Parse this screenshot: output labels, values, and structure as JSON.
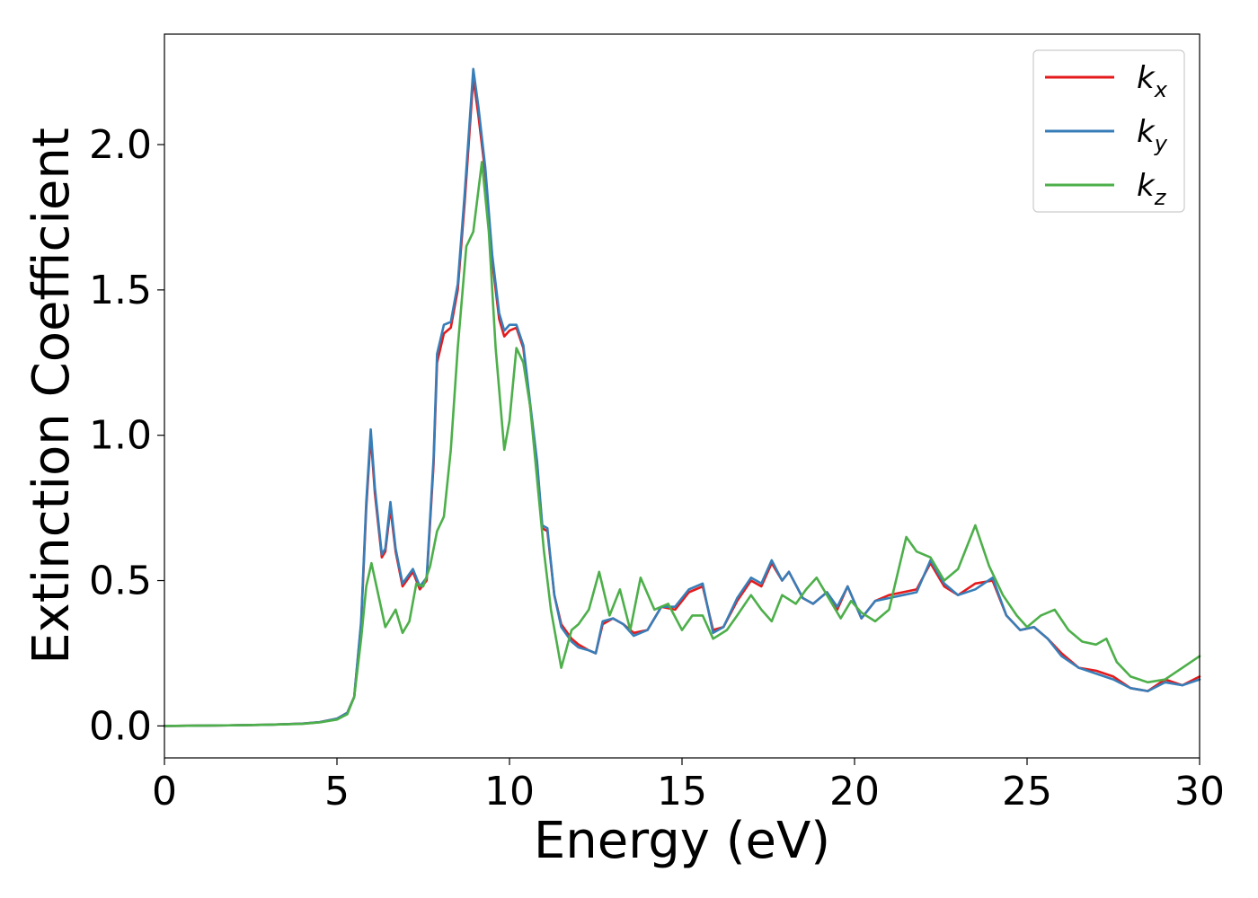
{
  "chart_data": {
    "type": "line",
    "title": "",
    "xlabel": "Energy (eV)",
    "ylabel": "Extinction Coefficient",
    "xlim": [
      0,
      30
    ],
    "ylim": [
      -0.11,
      2.38
    ],
    "xticks": [
      0,
      5,
      10,
      15,
      20,
      25,
      30
    ],
    "xtick_labels": [
      "0",
      "5",
      "10",
      "15",
      "20",
      "25",
      "30"
    ],
    "yticks": [
      0.0,
      0.5,
      1.0,
      1.5,
      2.0
    ],
    "ytick_labels": [
      "0.0",
      "0.5",
      "1.0",
      "1.5",
      "2.0"
    ],
    "grid": false,
    "legend_position": "top-right",
    "series": [
      {
        "name": "k_x",
        "legend_base": "k",
        "legend_sub": "x",
        "color": "#e41a1c",
        "points": [
          [
            0,
            0.0
          ],
          [
            1,
            0.001
          ],
          [
            2,
            0.002
          ],
          [
            3,
            0.004
          ],
          [
            4,
            0.008
          ],
          [
            4.5,
            0.013
          ],
          [
            5,
            0.025
          ],
          [
            5.3,
            0.045
          ],
          [
            5.5,
            0.1
          ],
          [
            5.7,
            0.35
          ],
          [
            5.85,
            0.75
          ],
          [
            5.98,
            1.0
          ],
          [
            6.1,
            0.8
          ],
          [
            6.3,
            0.58
          ],
          [
            6.4,
            0.6
          ],
          [
            6.55,
            0.75
          ],
          [
            6.7,
            0.6
          ],
          [
            6.9,
            0.48
          ],
          [
            7.2,
            0.53
          ],
          [
            7.4,
            0.47
          ],
          [
            7.6,
            0.5
          ],
          [
            7.8,
            0.9
          ],
          [
            7.9,
            1.25
          ],
          [
            8.1,
            1.35
          ],
          [
            8.3,
            1.37
          ],
          [
            8.5,
            1.5
          ],
          [
            8.7,
            1.8
          ],
          [
            8.95,
            2.23
          ],
          [
            9.1,
            2.1
          ],
          [
            9.3,
            1.9
          ],
          [
            9.5,
            1.6
          ],
          [
            9.7,
            1.4
          ],
          [
            9.85,
            1.34
          ],
          [
            10.0,
            1.36
          ],
          [
            10.2,
            1.37
          ],
          [
            10.4,
            1.3
          ],
          [
            10.6,
            1.1
          ],
          [
            10.8,
            0.9
          ],
          [
            10.95,
            0.68
          ],
          [
            11.1,
            0.67
          ],
          [
            11.3,
            0.45
          ],
          [
            11.5,
            0.35
          ],
          [
            11.8,
            0.3
          ],
          [
            12.0,
            0.28
          ],
          [
            12.3,
            0.26
          ],
          [
            12.5,
            0.25
          ],
          [
            12.7,
            0.35
          ],
          [
            13.0,
            0.37
          ],
          [
            13.3,
            0.35
          ],
          [
            13.6,
            0.32
          ],
          [
            14.0,
            0.33
          ],
          [
            14.4,
            0.41
          ],
          [
            14.8,
            0.4
          ],
          [
            15.2,
            0.46
          ],
          [
            15.6,
            0.48
          ],
          [
            15.9,
            0.33
          ],
          [
            16.2,
            0.34
          ],
          [
            16.6,
            0.43
          ],
          [
            17.0,
            0.5
          ],
          [
            17.3,
            0.48
          ],
          [
            17.6,
            0.56
          ],
          [
            17.9,
            0.5
          ],
          [
            18.1,
            0.53
          ],
          [
            18.5,
            0.44
          ],
          [
            18.8,
            0.42
          ],
          [
            19.2,
            0.46
          ],
          [
            19.5,
            0.4
          ],
          [
            19.8,
            0.48
          ],
          [
            20.2,
            0.37
          ],
          [
            20.6,
            0.43
          ],
          [
            21.0,
            0.45
          ],
          [
            21.4,
            0.46
          ],
          [
            21.8,
            0.47
          ],
          [
            22.2,
            0.56
          ],
          [
            22.6,
            0.48
          ],
          [
            23.0,
            0.45
          ],
          [
            23.5,
            0.49
          ],
          [
            24.0,
            0.5
          ],
          [
            24.4,
            0.38
          ],
          [
            24.8,
            0.33
          ],
          [
            25.2,
            0.34
          ],
          [
            25.6,
            0.3
          ],
          [
            26.0,
            0.25
          ],
          [
            26.5,
            0.2
          ],
          [
            27.0,
            0.19
          ],
          [
            27.5,
            0.17
          ],
          [
            28.0,
            0.13
          ],
          [
            28.5,
            0.12
          ],
          [
            29.0,
            0.16
          ],
          [
            29.5,
            0.14
          ],
          [
            30.0,
            0.17
          ]
        ]
      },
      {
        "name": "k_y",
        "legend_base": "k",
        "legend_sub": "y",
        "color": "#377eb8",
        "points": [
          [
            0,
            0.0
          ],
          [
            1,
            0.001
          ],
          [
            2,
            0.002
          ],
          [
            3,
            0.004
          ],
          [
            4,
            0.008
          ],
          [
            4.5,
            0.013
          ],
          [
            5,
            0.025
          ],
          [
            5.3,
            0.045
          ],
          [
            5.5,
            0.1
          ],
          [
            5.7,
            0.36
          ],
          [
            5.85,
            0.77
          ],
          [
            5.98,
            1.02
          ],
          [
            6.1,
            0.82
          ],
          [
            6.3,
            0.59
          ],
          [
            6.4,
            0.61
          ],
          [
            6.55,
            0.77
          ],
          [
            6.7,
            0.61
          ],
          [
            6.9,
            0.49
          ],
          [
            7.2,
            0.54
          ],
          [
            7.4,
            0.48
          ],
          [
            7.6,
            0.51
          ],
          [
            7.8,
            0.92
          ],
          [
            7.9,
            1.28
          ],
          [
            8.1,
            1.38
          ],
          [
            8.3,
            1.39
          ],
          [
            8.5,
            1.52
          ],
          [
            8.7,
            1.83
          ],
          [
            8.95,
            2.26
          ],
          [
            9.1,
            2.13
          ],
          [
            9.3,
            1.92
          ],
          [
            9.5,
            1.62
          ],
          [
            9.7,
            1.42
          ],
          [
            9.85,
            1.36
          ],
          [
            10.0,
            1.38
          ],
          [
            10.2,
            1.38
          ],
          [
            10.4,
            1.31
          ],
          [
            10.6,
            1.11
          ],
          [
            10.8,
            0.91
          ],
          [
            10.95,
            0.69
          ],
          [
            11.1,
            0.68
          ],
          [
            11.3,
            0.45
          ],
          [
            11.5,
            0.34
          ],
          [
            11.8,
            0.29
          ],
          [
            12.0,
            0.27
          ],
          [
            12.3,
            0.26
          ],
          [
            12.5,
            0.25
          ],
          [
            12.7,
            0.36
          ],
          [
            13.0,
            0.37
          ],
          [
            13.3,
            0.35
          ],
          [
            13.6,
            0.31
          ],
          [
            14.0,
            0.33
          ],
          [
            14.4,
            0.41
          ],
          [
            14.8,
            0.41
          ],
          [
            15.2,
            0.47
          ],
          [
            15.6,
            0.49
          ],
          [
            15.9,
            0.32
          ],
          [
            16.2,
            0.34
          ],
          [
            16.6,
            0.44
          ],
          [
            17.0,
            0.51
          ],
          [
            17.3,
            0.49
          ],
          [
            17.6,
            0.57
          ],
          [
            17.9,
            0.5
          ],
          [
            18.1,
            0.53
          ],
          [
            18.5,
            0.44
          ],
          [
            18.8,
            0.42
          ],
          [
            19.2,
            0.46
          ],
          [
            19.5,
            0.41
          ],
          [
            19.8,
            0.48
          ],
          [
            20.2,
            0.37
          ],
          [
            20.6,
            0.43
          ],
          [
            21.0,
            0.44
          ],
          [
            21.4,
            0.45
          ],
          [
            21.8,
            0.46
          ],
          [
            22.2,
            0.57
          ],
          [
            22.6,
            0.49
          ],
          [
            23.0,
            0.45
          ],
          [
            23.5,
            0.47
          ],
          [
            24.0,
            0.51
          ],
          [
            24.4,
            0.38
          ],
          [
            24.8,
            0.33
          ],
          [
            25.2,
            0.34
          ],
          [
            25.6,
            0.3
          ],
          [
            26.0,
            0.24
          ],
          [
            26.5,
            0.2
          ],
          [
            27.0,
            0.18
          ],
          [
            27.5,
            0.16
          ],
          [
            28.0,
            0.13
          ],
          [
            28.5,
            0.12
          ],
          [
            29.0,
            0.15
          ],
          [
            29.5,
            0.14
          ],
          [
            30.0,
            0.16
          ]
        ]
      },
      {
        "name": "k_z",
        "legend_base": "k",
        "legend_sub": "z",
        "color": "#4daf4a",
        "points": [
          [
            0,
            0.0
          ],
          [
            1,
            0.001
          ],
          [
            2,
            0.002
          ],
          [
            3,
            0.004
          ],
          [
            4,
            0.007
          ],
          [
            4.5,
            0.012
          ],
          [
            5,
            0.022
          ],
          [
            5.3,
            0.04
          ],
          [
            5.5,
            0.1
          ],
          [
            5.7,
            0.3
          ],
          [
            5.85,
            0.48
          ],
          [
            6.0,
            0.56
          ],
          [
            6.2,
            0.45
          ],
          [
            6.4,
            0.34
          ],
          [
            6.7,
            0.4
          ],
          [
            6.9,
            0.32
          ],
          [
            7.1,
            0.36
          ],
          [
            7.3,
            0.49
          ],
          [
            7.5,
            0.48
          ],
          [
            7.7,
            0.55
          ],
          [
            7.9,
            0.67
          ],
          [
            8.1,
            0.72
          ],
          [
            8.3,
            0.95
          ],
          [
            8.5,
            1.3
          ],
          [
            8.75,
            1.65
          ],
          [
            8.95,
            1.7
          ],
          [
            9.2,
            1.94
          ],
          [
            9.4,
            1.7
          ],
          [
            9.6,
            1.3
          ],
          [
            9.85,
            0.95
          ],
          [
            10.0,
            1.05
          ],
          [
            10.2,
            1.3
          ],
          [
            10.4,
            1.25
          ],
          [
            10.6,
            1.1
          ],
          [
            10.8,
            0.85
          ],
          [
            11.0,
            0.6
          ],
          [
            11.2,
            0.4
          ],
          [
            11.5,
            0.2
          ],
          [
            11.8,
            0.33
          ],
          [
            12.0,
            0.35
          ],
          [
            12.3,
            0.4
          ],
          [
            12.6,
            0.53
          ],
          [
            12.9,
            0.38
          ],
          [
            13.2,
            0.47
          ],
          [
            13.5,
            0.33
          ],
          [
            13.8,
            0.51
          ],
          [
            14.2,
            0.4
          ],
          [
            14.6,
            0.42
          ],
          [
            15.0,
            0.33
          ],
          [
            15.3,
            0.38
          ],
          [
            15.6,
            0.38
          ],
          [
            15.9,
            0.3
          ],
          [
            16.3,
            0.33
          ],
          [
            16.6,
            0.38
          ],
          [
            17.0,
            0.45
          ],
          [
            17.3,
            0.4
          ],
          [
            17.6,
            0.36
          ],
          [
            17.9,
            0.45
          ],
          [
            18.3,
            0.42
          ],
          [
            18.6,
            0.47
          ],
          [
            18.9,
            0.51
          ],
          [
            19.2,
            0.45
          ],
          [
            19.6,
            0.37
          ],
          [
            19.9,
            0.43
          ],
          [
            20.2,
            0.39
          ],
          [
            20.6,
            0.36
          ],
          [
            21.0,
            0.4
          ],
          [
            21.5,
            0.65
          ],
          [
            21.8,
            0.6
          ],
          [
            22.2,
            0.58
          ],
          [
            22.6,
            0.5
          ],
          [
            23.0,
            0.54
          ],
          [
            23.5,
            0.69
          ],
          [
            23.9,
            0.55
          ],
          [
            24.3,
            0.45
          ],
          [
            24.7,
            0.38
          ],
          [
            25.0,
            0.34
          ],
          [
            25.4,
            0.38
          ],
          [
            25.8,
            0.4
          ],
          [
            26.2,
            0.33
          ],
          [
            26.6,
            0.29
          ],
          [
            27.0,
            0.28
          ],
          [
            27.3,
            0.3
          ],
          [
            27.6,
            0.22
          ],
          [
            28.0,
            0.17
          ],
          [
            28.5,
            0.15
          ],
          [
            29.0,
            0.16
          ],
          [
            29.5,
            0.2
          ],
          [
            30.0,
            0.24
          ]
        ]
      }
    ]
  }
}
